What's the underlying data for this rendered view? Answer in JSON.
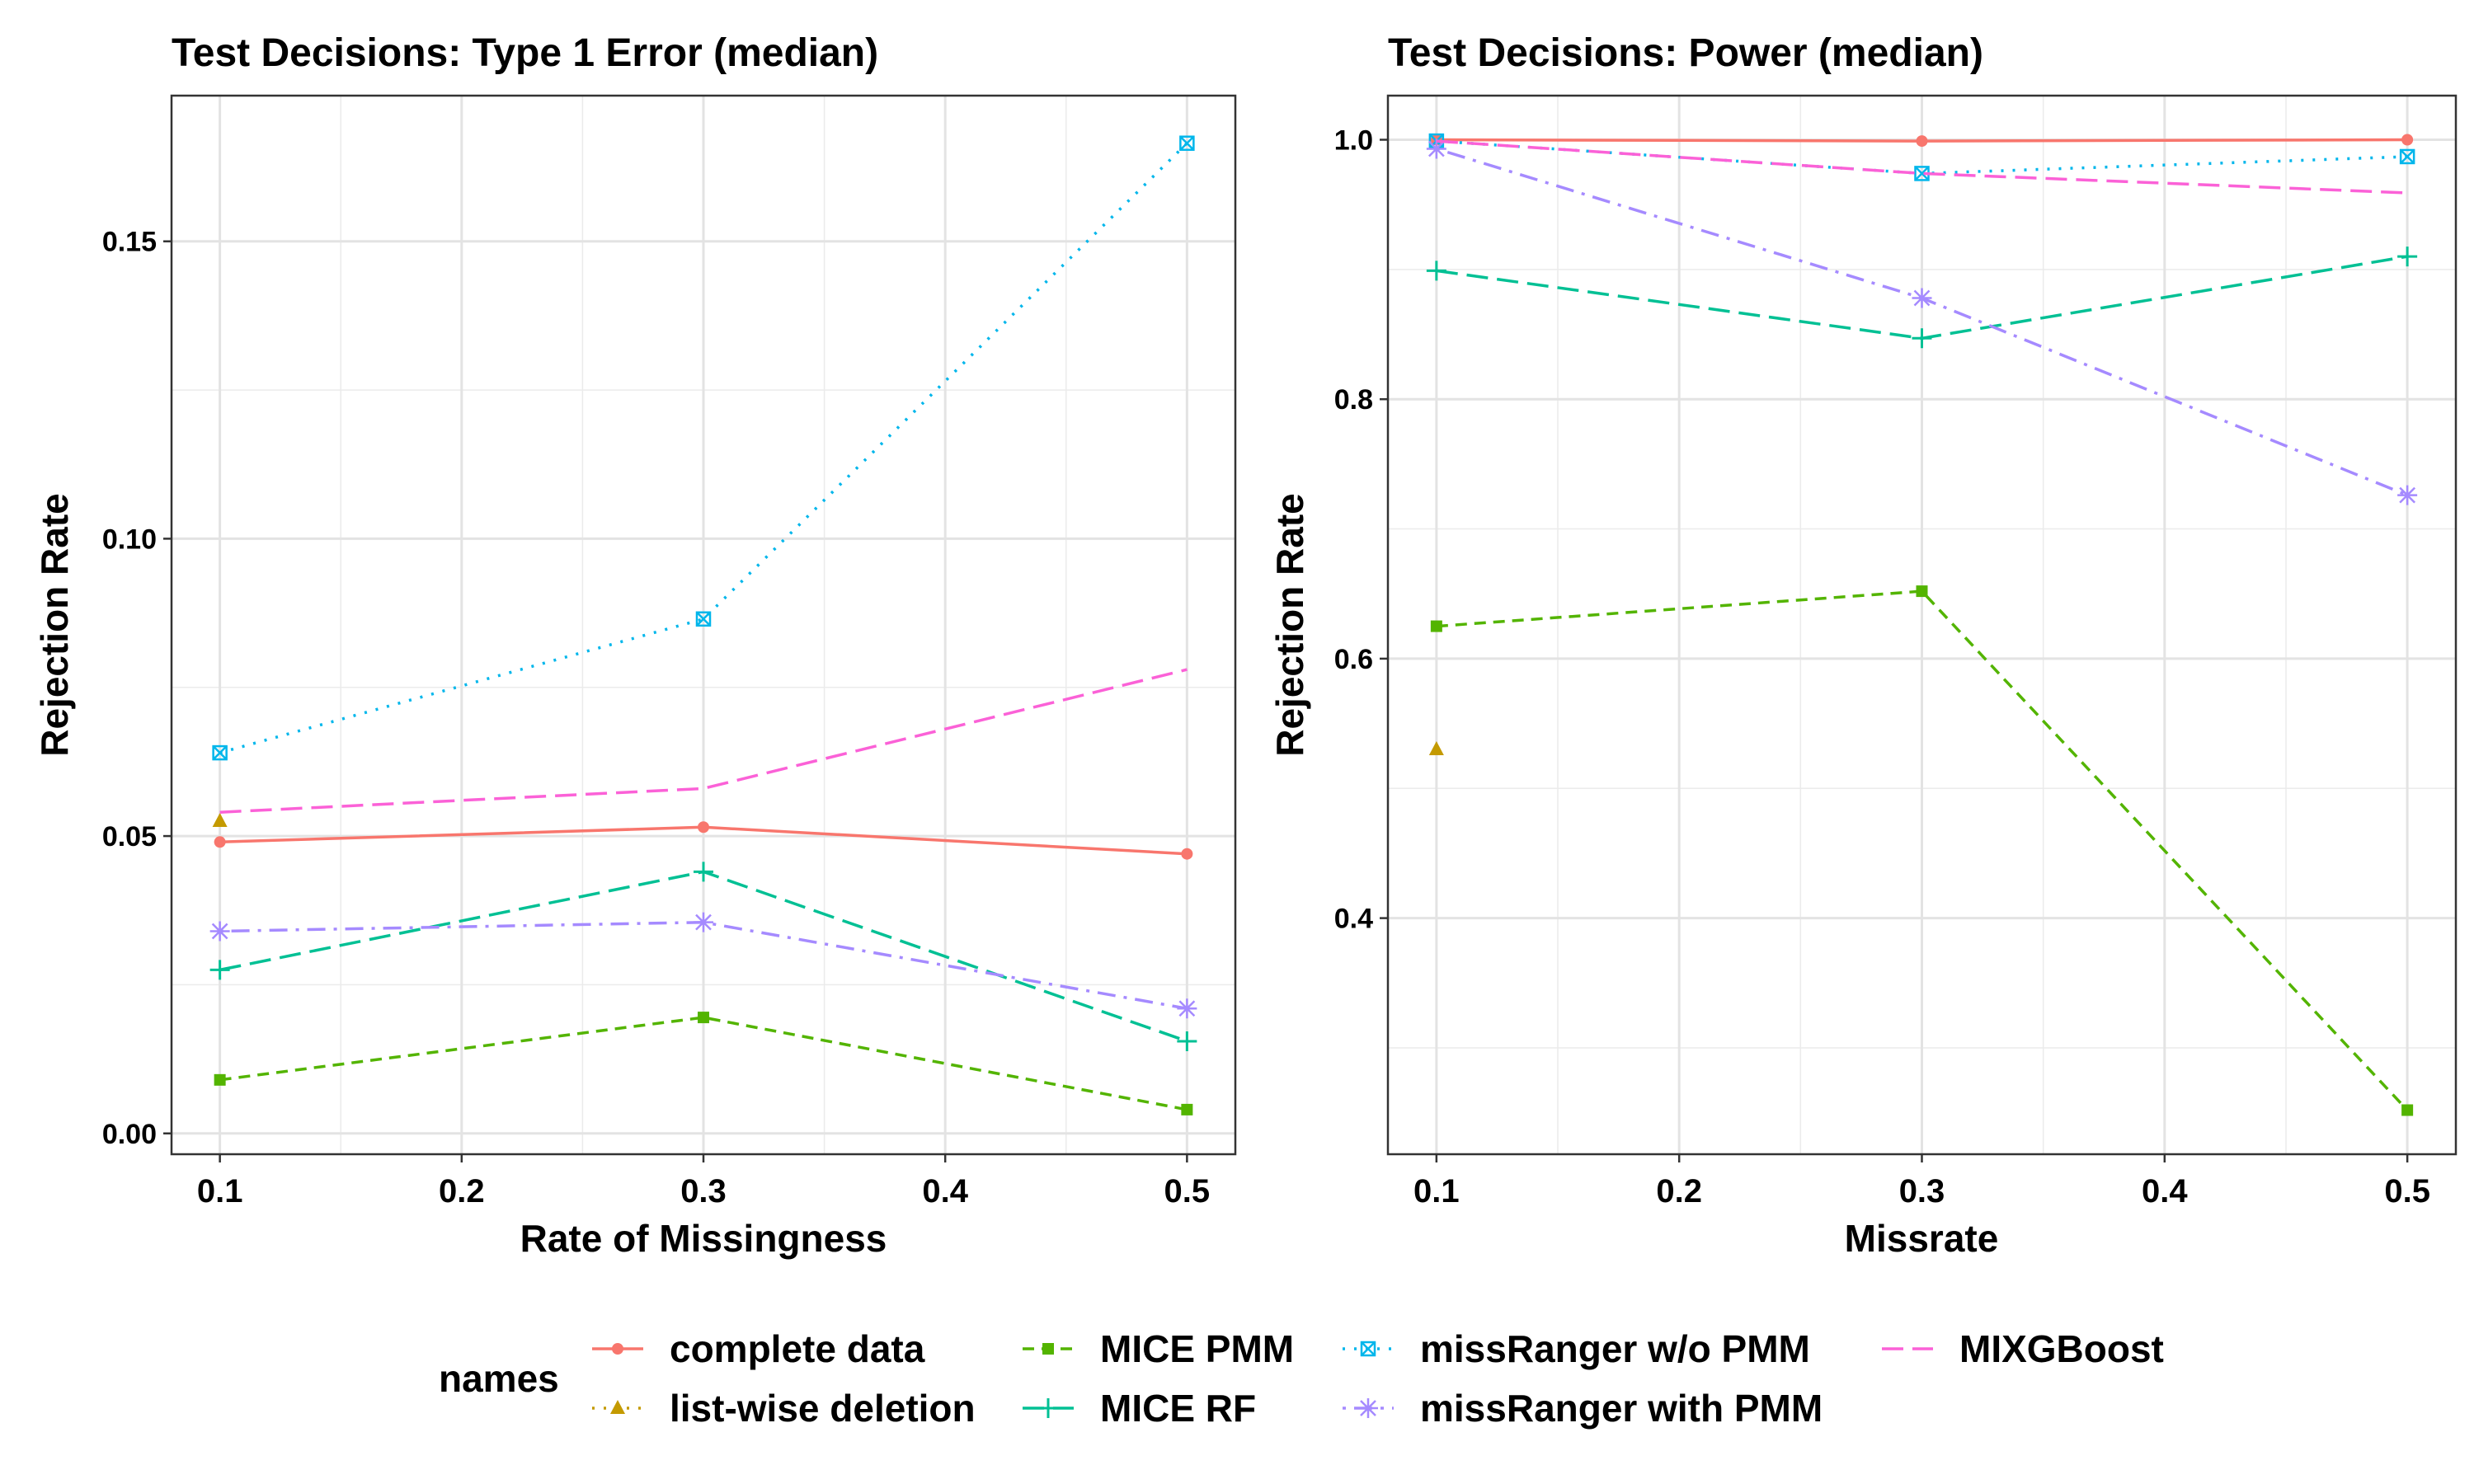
{
  "legend": {
    "title": "names",
    "entries": [
      {
        "name": "complete data",
        "color": "#F8766D",
        "dash": "solid",
        "marker": "circle"
      },
      {
        "name": "list-wise deletion",
        "color": "#C49A00",
        "dash": "dotted",
        "marker": "triangle"
      },
      {
        "name": "MICE PMM",
        "color": "#53B400",
        "dash": "dashed",
        "marker": "square"
      },
      {
        "name": "MICE RF",
        "color": "#00C094",
        "dash": "longdash",
        "marker": "plus"
      },
      {
        "name": "missRanger w/o PMM",
        "color": "#00B6EB",
        "dash": "dotted",
        "marker": "boxx"
      },
      {
        "name": "missRanger with PMM",
        "color": "#A58AFF",
        "dash": "dotdash",
        "marker": "asterisk"
      },
      {
        "name": "MIXGBoost",
        "color": "#FB61D7",
        "dash": "longdash",
        "marker": "none"
      }
    ]
  },
  "chart_data": [
    {
      "type": "line",
      "title": "Test Decisions: Type 1 Error  (median)",
      "xlabel": "Rate of Missingness",
      "ylabel": "Rejection Rate",
      "xlim": [
        0.08,
        0.52
      ],
      "ylim": [
        -0.0035,
        0.1745
      ],
      "xticks": [
        0.1,
        0.2,
        0.3,
        0.4,
        0.5
      ],
      "xtick_labels": [
        "0.1",
        "0.2",
        "0.3",
        "0.4",
        "0.5"
      ],
      "yticks": [
        0.0,
        0.05,
        0.1,
        0.15
      ],
      "ytick_labels": [
        "0.00",
        "0.05",
        "0.10",
        "0.15"
      ],
      "grid": true,
      "series": [
        {
          "name": "complete data",
          "x": [
            0.1,
            0.3,
            0.5
          ],
          "y": [
            0.049,
            0.0515,
            0.047
          ]
        },
        {
          "name": "list-wise deletion",
          "x": [
            0.1
          ],
          "y": [
            0.0525
          ]
        },
        {
          "name": "MICE PMM",
          "x": [
            0.1,
            0.3,
            0.5
          ],
          "y": [
            0.009,
            0.0195,
            0.004
          ]
        },
        {
          "name": "MICE RF",
          "x": [
            0.1,
            0.3,
            0.5
          ],
          "y": [
            0.0275,
            0.044,
            0.0155
          ]
        },
        {
          "name": "missRanger w/o PMM",
          "x": [
            0.1,
            0.3,
            0.5
          ],
          "y": [
            0.064,
            0.0865,
            0.1665
          ]
        },
        {
          "name": "missRanger with PMM",
          "x": [
            0.1,
            0.3,
            0.5
          ],
          "y": [
            0.034,
            0.0355,
            0.021
          ]
        },
        {
          "name": "MIXGBoost",
          "x": [
            0.1,
            0.3,
            0.5
          ],
          "y": [
            0.054,
            0.058,
            0.078
          ]
        }
      ]
    },
    {
      "type": "line",
      "title": "Test Decisions: Power (median)",
      "xlabel": "Missrate",
      "ylabel": "Rejection Rate",
      "xlim": [
        0.08,
        0.52
      ],
      "ylim": [
        0.218,
        1.034
      ],
      "xticks": [
        0.1,
        0.2,
        0.3,
        0.4,
        0.5
      ],
      "xtick_labels": [
        "0.1",
        "0.2",
        "0.3",
        "0.4",
        "0.5"
      ],
      "yticks": [
        0.4,
        0.6,
        0.8,
        1.0
      ],
      "ytick_labels": [
        "0.4",
        "0.6",
        "0.8",
        "1.0"
      ],
      "grid": true,
      "series": [
        {
          "name": "complete data",
          "x": [
            0.1,
            0.3,
            0.5
          ],
          "y": [
            1.0,
            0.999,
            1.0
          ]
        },
        {
          "name": "list-wise deletion",
          "x": [
            0.1
          ],
          "y": [
            0.53
          ]
        },
        {
          "name": "MICE PMM",
          "x": [
            0.1,
            0.3,
            0.5
          ],
          "y": [
            0.625,
            0.652,
            0.252
          ]
        },
        {
          "name": "MICE RF",
          "x": [
            0.1,
            0.3,
            0.5
          ],
          "y": [
            0.899,
            0.847,
            0.91
          ]
        },
        {
          "name": "missRanger w/o PMM",
          "x": [
            0.1,
            0.3,
            0.5
          ],
          "y": [
            0.999,
            0.974,
            0.987
          ]
        },
        {
          "name": "missRanger with PMM",
          "x": [
            0.1,
            0.3,
            0.5
          ],
          "y": [
            0.993,
            0.878,
            0.726
          ]
        },
        {
          "name": "MIXGBoost",
          "x": [
            0.1,
            0.3,
            0.5
          ],
          "y": [
            0.999,
            0.974,
            0.959
          ]
        }
      ]
    }
  ]
}
